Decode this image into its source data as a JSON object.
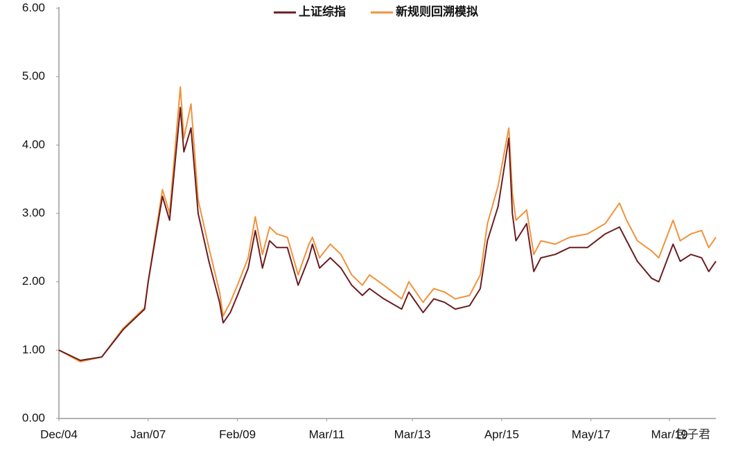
{
  "chart_data": {
    "type": "line",
    "legend": "top",
    "watermark": "包子君",
    "x": [
      "Dec/04",
      "Jun/05",
      "Dec/05",
      "Jun/06",
      "Dec/06",
      "Jan/07",
      "May/07",
      "Jul/07",
      "Oct/07",
      "Nov/07",
      "Jan/08",
      "Mar/08",
      "Jun/08",
      "Sep/08",
      "Oct/08",
      "Dec/08",
      "Feb/09",
      "May/09",
      "Jul/09",
      "Sep/09",
      "Nov/09",
      "Jan/10",
      "Apr/10",
      "Jul/10",
      "Oct/10",
      "Nov/10",
      "Jan/11",
      "Apr/11",
      "Jul/11",
      "Oct/11",
      "Jan/12",
      "Mar/12",
      "Jul/12",
      "Dec/12",
      "Feb/13",
      "Jun/13",
      "Sep/13",
      "Dec/13",
      "Mar/14",
      "Jul/14",
      "Oct/14",
      "Dec/14",
      "Mar/15",
      "Jun/15",
      "Jul/15",
      "Aug/15",
      "Nov/15",
      "Jan/16",
      "Mar/16",
      "Jul/16",
      "Nov/16",
      "Apr/17",
      "Sep/17",
      "Jan/18",
      "Mar/18",
      "Jun/18",
      "Oct/18",
      "Dec/18",
      "Apr/19",
      "Jun/19",
      "Sep/19",
      "Dec/19",
      "Feb/20",
      "Apr/20"
    ],
    "series": [
      {
        "name": "上证综指",
        "color": "#6b1c1f",
        "values": [
          1.0,
          0.85,
          0.9,
          1.3,
          1.6,
          2.0,
          3.25,
          2.9,
          4.55,
          3.9,
          4.25,
          3.0,
          2.3,
          1.7,
          1.4,
          1.55,
          1.8,
          2.2,
          2.75,
          2.2,
          2.6,
          2.5,
          2.5,
          1.95,
          2.35,
          2.55,
          2.2,
          2.35,
          2.2,
          1.95,
          1.8,
          1.9,
          1.75,
          1.6,
          1.85,
          1.55,
          1.75,
          1.7,
          1.6,
          1.65,
          1.9,
          2.6,
          3.1,
          4.1,
          3.0,
          2.6,
          2.85,
          2.15,
          2.35,
          2.4,
          2.5,
          2.5,
          2.7,
          2.8,
          2.6,
          2.3,
          2.05,
          2.0,
          2.55,
          2.3,
          2.4,
          2.35,
          2.15,
          2.3
        ]
      },
      {
        "name": "新规则回溯模拟",
        "color": "#f0923a",
        "values": [
          1.0,
          0.83,
          0.9,
          1.32,
          1.62,
          2.0,
          3.35,
          3.0,
          4.85,
          4.1,
          4.6,
          3.2,
          2.5,
          1.85,
          1.5,
          1.7,
          1.95,
          2.35,
          2.95,
          2.4,
          2.8,
          2.7,
          2.65,
          2.1,
          2.55,
          2.65,
          2.35,
          2.55,
          2.4,
          2.1,
          1.95,
          2.1,
          1.95,
          1.75,
          2.0,
          1.7,
          1.9,
          1.85,
          1.75,
          1.8,
          2.1,
          2.85,
          3.4,
          4.25,
          3.3,
          2.9,
          3.05,
          2.4,
          2.6,
          2.55,
          2.65,
          2.7,
          2.85,
          3.15,
          2.9,
          2.6,
          2.45,
          2.35,
          2.9,
          2.6,
          2.7,
          2.75,
          2.5,
          2.65
        ]
      }
    ],
    "xticks": [
      "Dec/04",
      "Jan/07",
      "Feb/09",
      "Mar/11",
      "Mar/13",
      "Apr/15",
      "May/17",
      "Mar/19"
    ],
    "ylim": [
      0,
      6
    ],
    "yticks": [
      {
        "value": 0,
        "label": "0.00"
      },
      {
        "value": 1,
        "label": "1.00"
      },
      {
        "value": 2,
        "label": "2.00"
      },
      {
        "value": 3,
        "label": "3.00"
      },
      {
        "value": 4,
        "label": "4.00"
      },
      {
        "value": 5,
        "label": "5.00"
      },
      {
        "value": 6,
        "label": "6.00"
      }
    ],
    "grid": false
  }
}
